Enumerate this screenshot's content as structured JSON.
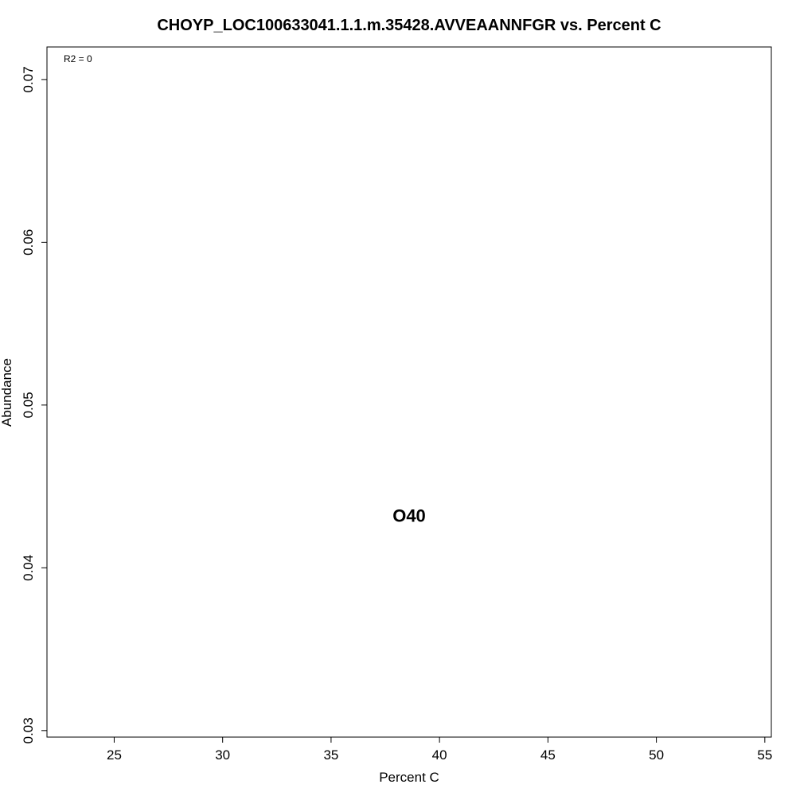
{
  "chart_data": {
    "type": "scatter",
    "title": "CHOYP_LOC100633041.1.1.m.35428.AVVEAANNFGR vs. Percent C",
    "xlabel": "Percent C",
    "ylabel": "Abundance",
    "xlim": [
      21.9,
      55.3
    ],
    "ylim": [
      0.0296,
      0.072
    ],
    "x_ticks": [
      25,
      30,
      35,
      40,
      45,
      50,
      55
    ],
    "y_ticks": [
      0.03,
      0.04,
      0.05,
      0.06,
      0.07
    ],
    "x_tick_labels": [
      "25",
      "30",
      "35",
      "40",
      "45",
      "50",
      "55"
    ],
    "y_tick_labels": [
      "0.03",
      "0.04",
      "0.05",
      "0.06",
      "0.07"
    ],
    "points": [
      {
        "label": "O40",
        "x": 38.6,
        "y": 0.0432
      }
    ],
    "annotation": "R2 = 0",
    "grid": false,
    "legend": "none"
  }
}
